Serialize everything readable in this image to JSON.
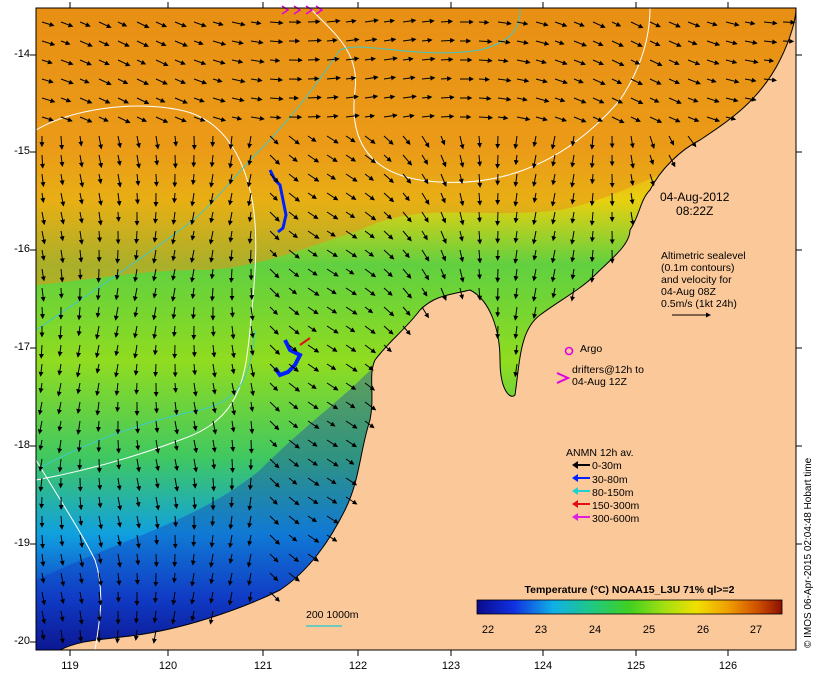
{
  "map": {
    "lat_ticks": [
      "-14",
      "-15",
      "-16",
      "-17",
      "-18",
      "-19",
      "-20"
    ],
    "lon_ticks": [
      "119",
      "120",
      "121",
      "122",
      "123",
      "124",
      "125",
      "126"
    ],
    "date": "04-Aug-2012",
    "time": "08:22Z",
    "altimetry_lines": [
      "Altimetric sealevel",
      "(0.1m contours)",
      "and velocity for",
      "04-Aug 08Z",
      "0.5m/s (1kt 24h)"
    ],
    "argo_label": "Argo",
    "drifters_lines": [
      "drifters@12h to",
      "04-Aug 12Z"
    ],
    "scale_label": "200  1000m",
    "credit": "© IMOS 06-Apr-2015 02:04:48 Hobart time",
    "colors": {
      "land": "#fbc89a",
      "depth_contour": "#ffffff",
      "coast_200m": "#40c8c8",
      "argo": "#e000e0",
      "vectors": "#000000"
    }
  },
  "legend": {
    "title": "ANMN 12h av.",
    "items": [
      {
        "label": "0-30m",
        "color": "#000000"
      },
      {
        "label": "30-80m",
        "color": "#0020ff"
      },
      {
        "label": "80-150m",
        "color": "#20d0d0"
      },
      {
        "label": "150-300m",
        "color": "#e01010"
      },
      {
        "label": "300-600m",
        "color": "#e020e0"
      }
    ]
  },
  "colorbar": {
    "title": "Temperature (°C) NOAA15_L3U 71% ql>=2",
    "ticks": [
      "22",
      "23",
      "24",
      "25",
      "26",
      "27"
    ],
    "stops": [
      "#0a0a8c",
      "#1030e0",
      "#10b0e8",
      "#20c880",
      "#40d020",
      "#a8e010",
      "#f0e000",
      "#f0a000",
      "#d05000",
      "#8c1000"
    ]
  }
}
